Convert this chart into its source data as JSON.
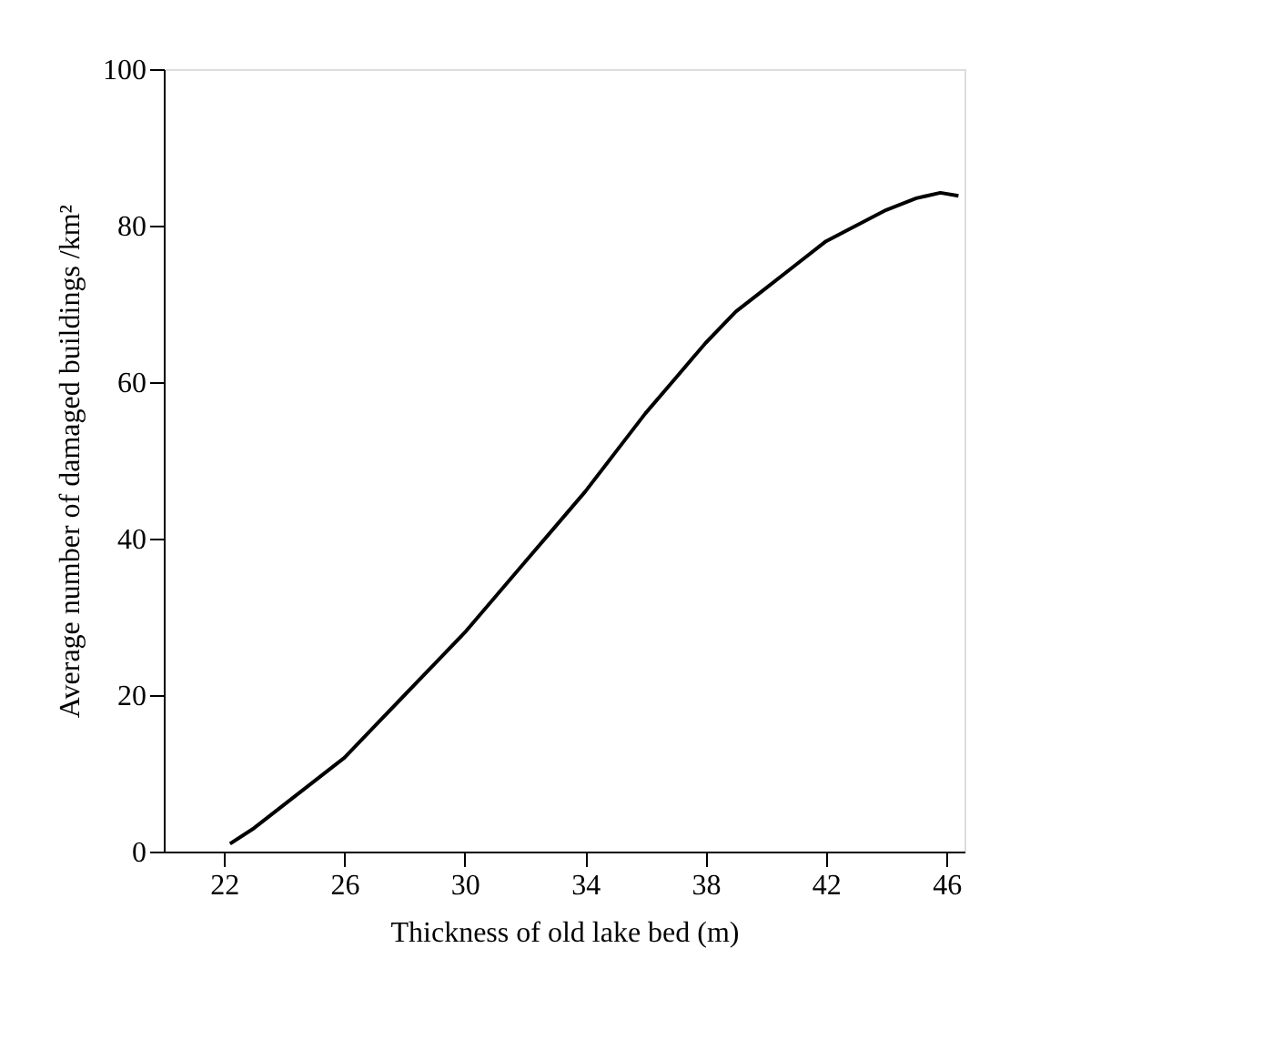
{
  "chart_data": {
    "type": "line",
    "xlabel": "Thickness of old lake bed (m)",
    "ylabel": "Average number of damaged buildings /km²",
    "x": [
      22.2,
      23,
      24,
      25,
      26,
      27,
      28,
      29,
      30,
      31,
      32,
      33,
      34,
      35,
      36,
      37,
      38,
      39,
      40,
      41,
      42,
      43,
      44,
      45,
      45.8,
      46.4
    ],
    "series": [
      {
        "color": "#000000",
        "values": [
          1,
          3,
          6,
          9,
          12,
          16,
          20,
          24,
          28,
          32.5,
          37,
          41.5,
          46,
          51,
          56,
          60.5,
          65,
          69,
          72,
          75,
          78,
          80,
          82,
          83.5,
          84.2,
          83.8
        ]
      }
    ],
    "xlim": [
      20,
      46.6
    ],
    "xticks": [
      22,
      26,
      30,
      34,
      38,
      42,
      46
    ],
    "ylim": [
      0,
      100
    ],
    "yticks": [
      0,
      20,
      40,
      60,
      80,
      100
    ],
    "grid": false
  }
}
